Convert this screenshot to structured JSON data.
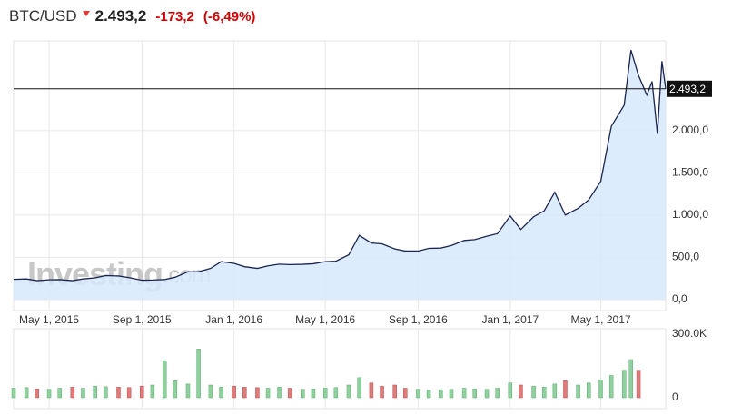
{
  "chart_data": {
    "type": "line",
    "title": "BTC/USD",
    "last": {
      "value": 2493.2,
      "label": "2.493,2"
    },
    "change": {
      "value": -173.2,
      "label": "-173,2"
    },
    "change_pct": {
      "value": -6.49,
      "label": "(-6,49%)"
    },
    "watermark": [
      "Investing",
      ".com"
    ],
    "x": [
      "Mar 15, 2015",
      "Apr 1, 2015",
      "Apr 15, 2015",
      "May 1, 2015",
      "May 15, 2015",
      "Jun 1, 2015",
      "Jun 15, 2015",
      "Jul 1, 2015",
      "Jul 15, 2015",
      "Aug 1, 2015",
      "Aug 15, 2015",
      "Sep 1, 2015",
      "Sep 15, 2015",
      "Oct 1, 2015",
      "Oct 15, 2015",
      "Nov 1, 2015",
      "Nov 15, 2015",
      "Dec 1, 2015",
      "Dec 15, 2015",
      "Jan 1, 2016",
      "Jan 15, 2016",
      "Feb 1, 2016",
      "Feb 15, 2016",
      "Mar 1, 2016",
      "Mar 15, 2016",
      "Apr 1, 2016",
      "Apr 15, 2016",
      "May 1, 2016",
      "May 15, 2016",
      "Jun 1, 2016",
      "Jun 15, 2016",
      "Jul 1, 2016",
      "Jul 15, 2016",
      "Aug 1, 2016",
      "Aug 15, 2016",
      "Sep 1, 2016",
      "Sep 15, 2016",
      "Oct 1, 2016",
      "Oct 15, 2016",
      "Nov 1, 2016",
      "Nov 15, 2016",
      "Dec 1, 2016",
      "Dec 15, 2016",
      "Jan 1, 2017",
      "Jan 15, 2017",
      "Feb 1, 2017",
      "Feb 15, 2017",
      "Mar 1, 2017",
      "Mar 15, 2017",
      "Apr 1, 2017",
      "Apr 15, 2017",
      "May 1, 2017",
      "May 15, 2017",
      "Jun 1, 2017",
      "Jun 10, 2017",
      "Jun 20, 2017",
      "Jul 1, 2017",
      "Jul 8, 2017",
      "Jul 15, 2017",
      "Jul 21, 2017",
      "Jul 26, 2017"
    ],
    "xlim": [
      "Mar 15, 2015",
      "Jul 26, 2017"
    ],
    "xticks": [
      "May 1, 2015",
      "Sep 1, 2015",
      "Jan 1, 2016",
      "May 1, 2016",
      "Sep 1, 2016",
      "Jan 1, 2017",
      "May 1, 2017"
    ],
    "ylim": [
      0,
      3060
    ],
    "yticks": [
      {
        "value": 0,
        "label": "0,0"
      },
      {
        "value": 500,
        "label": "500,0"
      },
      {
        "value": 1000,
        "label": "1.000,0"
      },
      {
        "value": 1500,
        "label": "1.500,0"
      },
      {
        "value": 2000,
        "label": "2.000,0"
      }
    ],
    "grid": true,
    "color": "#1c2550",
    "fill": "#d7e9fc",
    "values": [
      240,
      245,
      225,
      235,
      237,
      225,
      245,
      258,
      285,
      280,
      260,
      230,
      232,
      238,
      265,
      330,
      330,
      370,
      450,
      430,
      390,
      370,
      400,
      420,
      415,
      418,
      425,
      450,
      455,
      530,
      760,
      670,
      660,
      600,
      575,
      575,
      607,
      610,
      640,
      700,
      710,
      750,
      780,
      990,
      830,
      980,
      1050,
      1270,
      1000,
      1080,
      1180,
      1400,
      2050,
      2300,
      2950,
      2650,
      2420,
      2580,
      1960,
      2820,
      2493.2
    ],
    "volume": {
      "values": [
        45000,
        48000,
        42000,
        40000,
        45000,
        50000,
        45000,
        55000,
        52000,
        50000,
        48000,
        55000,
        60000,
        175000,
        80000,
        65000,
        230000,
        60000,
        50000,
        55000,
        50000,
        48000,
        45000,
        50000,
        45000,
        40000,
        42000,
        45000,
        48000,
        60000,
        95000,
        70000,
        55000,
        60000,
        45000,
        40000,
        35000,
        38000,
        40000,
        45000,
        42000,
        40000,
        45000,
        70000,
        60000,
        55000,
        50000,
        65000,
        80000,
        60000,
        70000,
        85000,
        105000,
        130000,
        180000,
        130000,
        null,
        null,
        null,
        null,
        null
      ],
      "ylim": [
        0,
        300000
      ],
      "yticks": [
        {
          "value": 300000,
          "label": "300.0K"
        },
        0
      ],
      "up_color": "#8fd19e",
      "down_color": "#e07b7b"
    }
  }
}
